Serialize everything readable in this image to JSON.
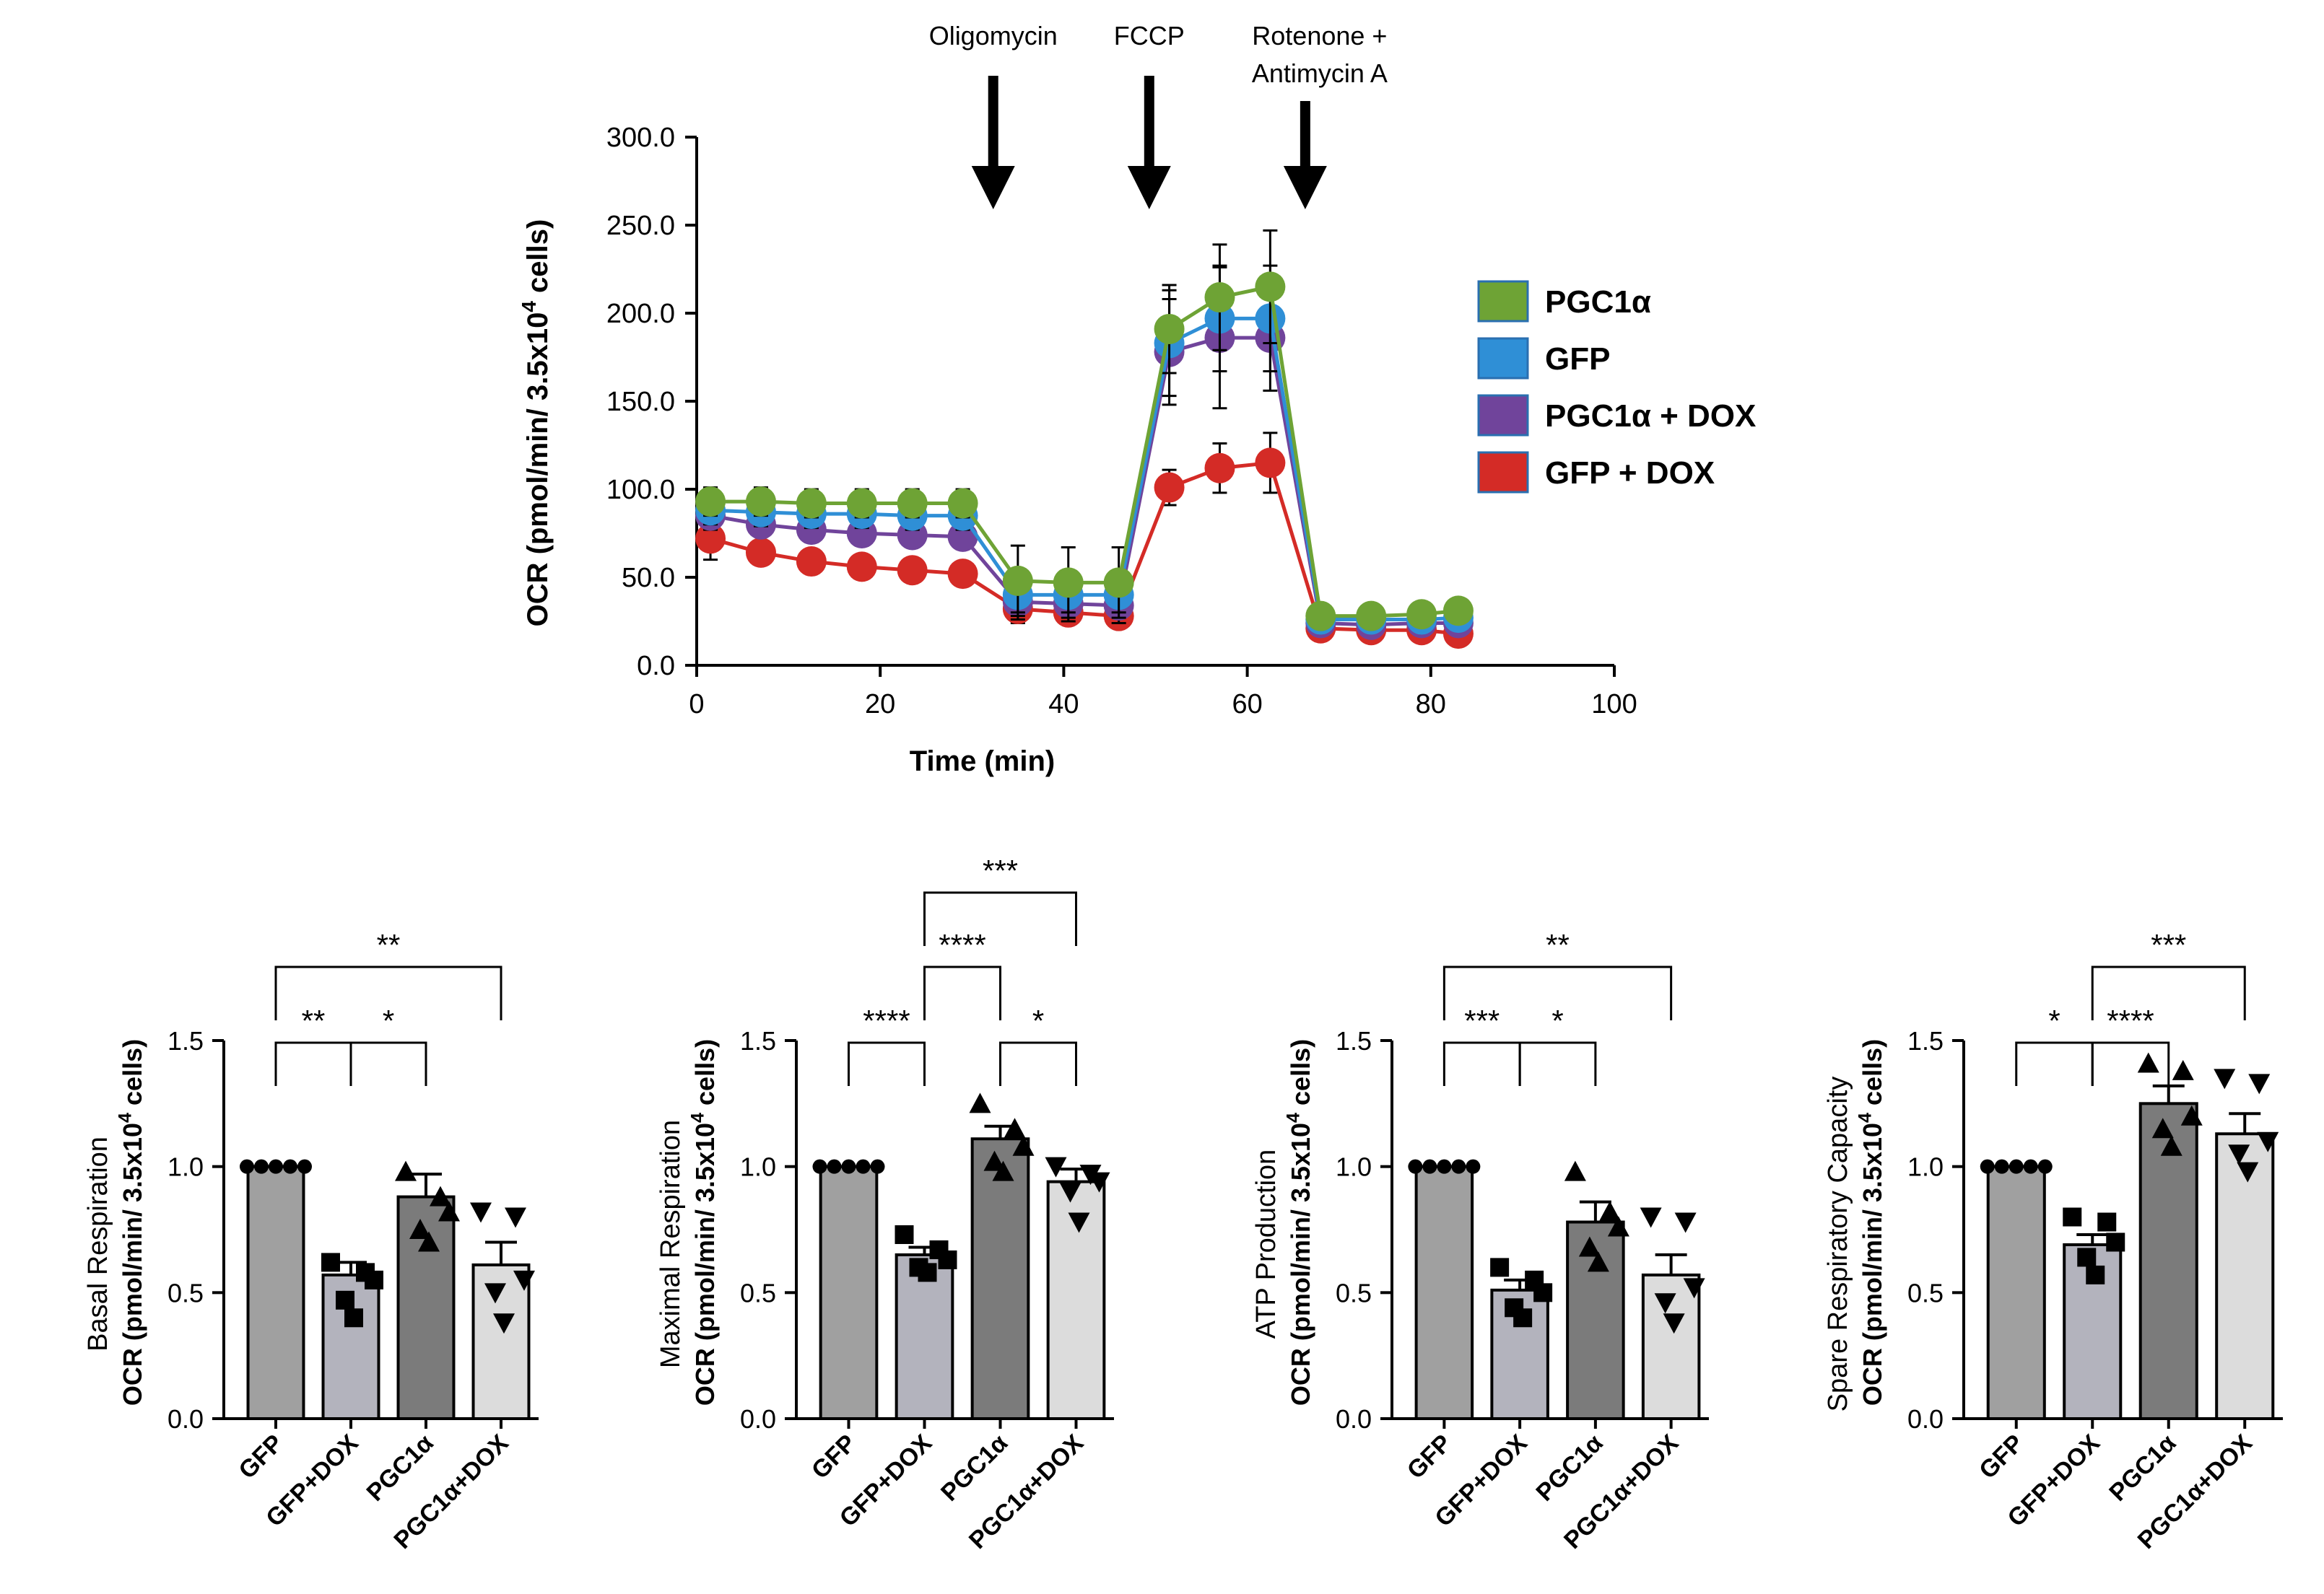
{
  "chart_data": [
    {
      "type": "line",
      "xlabel": "Time (min)",
      "ylabel": "OCR (pmol/min/ 3.5x10",
      "ylabel_sup": "4",
      "ylabel_end": " cells)",
      "xlim": [
        0,
        100
      ],
      "ylim": [
        0,
        300
      ],
      "xticks": [
        "0",
        "20",
        "40",
        "60",
        "80",
        "100"
      ],
      "xtick_values": [
        0,
        20,
        40,
        60,
        80,
        100
      ],
      "yticks": [
        "0.0",
        "50.0",
        "100.0",
        "150.0",
        "200.0",
        "250.0",
        "300.0"
      ],
      "ytick_values": [
        0,
        50,
        100,
        150,
        200,
        250,
        300
      ],
      "annotations": [
        {
          "lines": [
            "Oligomycin"
          ],
          "x": 32
        },
        {
          "lines": [
            "FCCP"
          ],
          "x": 49
        },
        {
          "lines": [
            "Rotenone +",
            "Antimycin A"
          ],
          "x": 66
        }
      ],
      "x": [
        1.5,
        7,
        12.5,
        18,
        23.5,
        29,
        35,
        40.5,
        46,
        51.5,
        57,
        62.5,
        68,
        73.5,
        79,
        83
      ],
      "series": [
        {
          "name": "GFP + DOX",
          "color": "#d42b26",
          "values": [
            72,
            64,
            59,
            56,
            54,
            52,
            32,
            30,
            28,
            101,
            112,
            115,
            21,
            20,
            20,
            18
          ],
          "err": [
            12,
            5,
            5,
            4,
            5,
            5,
            8,
            6,
            5,
            10,
            14,
            17,
            3,
            3,
            3,
            3
          ]
        },
        {
          "name": "PGC1α + DOX",
          "color": "#70449b",
          "values": [
            85,
            80,
            77,
            75,
            74,
            73,
            36,
            35,
            34,
            178,
            186,
            186,
            24,
            23,
            24,
            24
          ],
          "err": [
            8,
            7,
            7,
            7,
            7,
            7,
            10,
            10,
            10,
            30,
            40,
            30,
            3,
            3,
            3,
            3
          ]
        },
        {
          "name": "GFP",
          "color": "#2f8fd6",
          "values": [
            88,
            87,
            86,
            86,
            85,
            85,
            40,
            40,
            40,
            183,
            197,
            197,
            26,
            26,
            26,
            27
          ],
          "err": [
            8,
            8,
            8,
            8,
            8,
            8,
            10,
            10,
            10,
            30,
            30,
            30,
            3,
            3,
            3,
            3
          ]
        },
        {
          "name": "PGC1α",
          "color": "#6ea335",
          "values": [
            93,
            93,
            92,
            92,
            92,
            92,
            48,
            47,
            47,
            191,
            209,
            215,
            28,
            28,
            29,
            31
          ],
          "err": [
            8,
            8,
            8,
            8,
            8,
            8,
            20,
            20,
            20,
            25,
            30,
            32,
            4,
            4,
            4,
            4
          ]
        }
      ],
      "legend": [
        {
          "name": "PGC1α",
          "color": "#6ea335"
        },
        {
          "name": "GFP",
          "color": "#2f8fd6"
        },
        {
          "name": "PGC1α + DOX",
          "color": "#70449b"
        },
        {
          "name": "GFP + DOX",
          "color": "#d42b26"
        }
      ]
    },
    {
      "type": "bar",
      "ylabel_top": "Basal Respiration",
      "ylabel": "OCR (pmol/min/ 3.5x10",
      "ylabel_sup": "4",
      "ylabel_end": " cells)",
      "ylim": [
        0,
        1.5
      ],
      "yticks": [
        "0.0",
        "0.5",
        "1.0",
        "1.5"
      ],
      "ytick_values": [
        0,
        0.5,
        1.0,
        1.5
      ],
      "categories": [
        "GFP",
        "GFP+DOX",
        "PGC1α",
        "PGC1α+DOX"
      ],
      "values": [
        1.0,
        0.57,
        0.88,
        0.61
      ],
      "sem": [
        0,
        0.05,
        0.09,
        0.09
      ],
      "points": [
        [
          1,
          1,
          1,
          1,
          1
        ],
        [
          0.62,
          0.58,
          0.55,
          0.47,
          0.4
        ],
        [
          0.98,
          0.88,
          0.82,
          0.75,
          0.7
        ],
        [
          0.82,
          0.8,
          0.55,
          0.5,
          0.38
        ]
      ],
      "significance": [
        {
          "from": 0,
          "to": 3,
          "label": "**"
        },
        {
          "from": 0,
          "to": 1,
          "label": "**"
        },
        {
          "from": 1,
          "to": 2,
          "label": "*"
        }
      ]
    },
    {
      "type": "bar",
      "ylabel_top": "Maximal Respiration",
      "ylabel": "OCR (pmol/min/ 3.5x10",
      "ylabel_sup": "4",
      "ylabel_end": " cells)",
      "ylim": [
        0,
        1.5
      ],
      "yticks": [
        "0.0",
        "0.5",
        "1.0",
        "1.5"
      ],
      "ytick_values": [
        0,
        0.5,
        1.0,
        1.5
      ],
      "categories": [
        "GFP",
        "GFP+DOX",
        "PGC1α",
        "PGC1α+DOX"
      ],
      "values": [
        1.0,
        0.65,
        1.11,
        0.94
      ],
      "sem": [
        0,
        0.03,
        0.05,
        0.05
      ],
      "points": [
        [
          1,
          1,
          1,
          1,
          1
        ],
        [
          0.73,
          0.67,
          0.63,
          0.6,
          0.58
        ],
        [
          1.25,
          1.15,
          1.08,
          1.02,
          0.98
        ],
        [
          1.0,
          0.97,
          0.94,
          0.9,
          0.78
        ]
      ],
      "significance": [
        {
          "from": 1,
          "to": 3,
          "label": "***"
        },
        {
          "from": 1,
          "to": 2,
          "label": "****"
        },
        {
          "from": 0,
          "to": 1,
          "label": "****"
        },
        {
          "from": 2,
          "to": 3,
          "label": "*"
        }
      ]
    },
    {
      "type": "bar",
      "ylabel_top": "ATP Production",
      "ylabel": "OCR (pmol/min/ 3.5x10",
      "ylabel_sup": "4",
      "ylabel_end": " cells)",
      "ylim": [
        0,
        1.5
      ],
      "yticks": [
        "0.0",
        "0.5",
        "1.0",
        "1.5"
      ],
      "ytick_values": [
        0,
        0.5,
        1.0,
        1.5
      ],
      "categories": [
        "GFP",
        "GFP+DOX",
        "PGC1α",
        "PGC1α+DOX"
      ],
      "values": [
        1.0,
        0.51,
        0.78,
        0.57
      ],
      "sem": [
        0,
        0.04,
        0.08,
        0.08
      ],
      "points": [
        [
          1,
          1,
          1,
          1,
          1
        ],
        [
          0.6,
          0.55,
          0.5,
          0.44,
          0.4
        ],
        [
          0.98,
          0.82,
          0.76,
          0.68,
          0.62
        ],
        [
          0.8,
          0.78,
          0.52,
          0.46,
          0.38
        ]
      ],
      "significance": [
        {
          "from": 0,
          "to": 3,
          "label": "**"
        },
        {
          "from": 0,
          "to": 1,
          "label": "***"
        },
        {
          "from": 1,
          "to": 2,
          "label": "*"
        }
      ]
    },
    {
      "type": "bar",
      "ylabel_top": "Spare Respiratory Capacity",
      "ylabel": "OCR (pmol/min/ 3.5x10",
      "ylabel_sup": "4",
      "ylabel_end": " cells)",
      "ylim": [
        0,
        1.5
      ],
      "yticks": [
        "0.0",
        "0.5",
        "1.0",
        "1.5"
      ],
      "ytick_values": [
        0,
        0.5,
        1.0,
        1.5
      ],
      "categories": [
        "GFP",
        "GFP+DOX",
        "PGC1α",
        "PGC1α+DOX"
      ],
      "values": [
        1.0,
        0.69,
        1.25,
        1.13
      ],
      "sem": [
        0,
        0.04,
        0.07,
        0.08
      ],
      "points": [
        [
          1,
          1,
          1,
          1,
          1
        ],
        [
          0.8,
          0.78,
          0.7,
          0.64,
          0.57
        ],
        [
          1.41,
          1.38,
          1.2,
          1.15,
          1.08
        ],
        [
          1.35,
          1.33,
          1.1,
          1.05,
          0.98
        ]
      ],
      "significance": [
        {
          "from": 1,
          "to": 3,
          "label": "***"
        },
        {
          "from": 0,
          "to": 1,
          "label": "*"
        },
        {
          "from": 1,
          "to": 2,
          "label": "****"
        }
      ]
    }
  ],
  "colors": {
    "bar_fills": [
      "#a0a0a0",
      "#b3b3bd",
      "#7b7b7b",
      "#dcdcdc"
    ],
    "axis": "#000000"
  }
}
